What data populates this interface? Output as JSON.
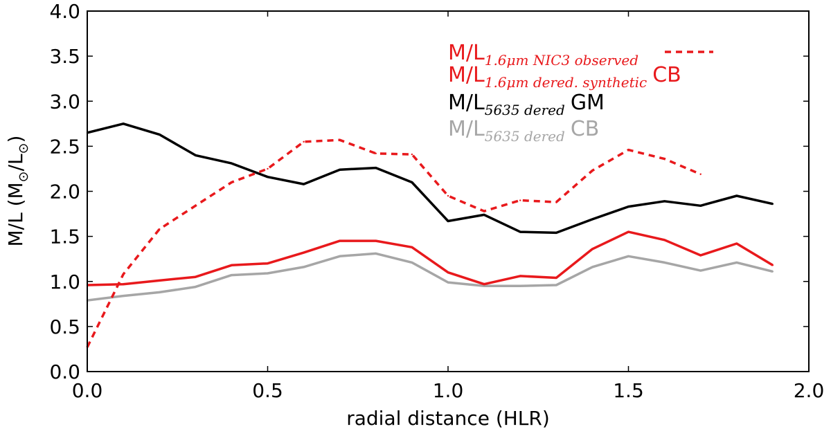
{
  "chart_data": {
    "type": "line",
    "title": "",
    "xlabel": "radial distance (HLR)",
    "ylabel_parts": {
      "prefix": "M/L (M",
      "sun1": "⊙",
      "mid": "/L",
      "sun2": "⊙",
      "suffix": ")"
    },
    "xlim": [
      0.0,
      2.0
    ],
    "ylim": [
      0.0,
      4.0
    ],
    "xticks": [
      0.0,
      0.5,
      1.0,
      1.5,
      2.0
    ],
    "xtick_labels": [
      "0.0",
      "0.5",
      "1.0",
      "1.5",
      "2.0"
    ],
    "yticks": [
      0.0,
      0.5,
      1.0,
      1.5,
      2.0,
      2.5,
      3.0,
      3.5,
      4.0
    ],
    "ytick_labels": [
      "0.0",
      "0.5",
      "1.0",
      "1.5",
      "2.0",
      "2.5",
      "3.0",
      "3.5",
      "4.0"
    ],
    "grid": false,
    "legend_position": "top-right",
    "series": [
      {
        "name": "M/L 1.6µm NIC3 observed",
        "legend_main": "M/L",
        "legend_sub": "1.6μm NIC3 observed",
        "legend_suffix": "",
        "color": "#e8191c",
        "style": "dashed",
        "x": [
          0.0,
          0.1,
          0.2,
          0.3,
          0.4,
          0.5,
          0.6,
          0.7,
          0.8,
          0.9,
          1.0,
          1.1,
          1.2,
          1.3,
          1.4,
          1.5,
          1.6,
          1.7
        ],
        "y": [
          0.27,
          1.08,
          1.58,
          1.84,
          2.1,
          2.25,
          2.55,
          2.57,
          2.42,
          2.41,
          1.95,
          1.78,
          1.9,
          1.88,
          2.23,
          2.46,
          2.36,
          2.19
        ]
      },
      {
        "name": "M/L 1.6µm dered. synthetic CB",
        "legend_main": "M/L",
        "legend_sub": "1.6μm dered. synthetic",
        "legend_suffix": "CB",
        "color": "#e8191c",
        "style": "solid",
        "x": [
          0.0,
          0.1,
          0.2,
          0.3,
          0.4,
          0.5,
          0.6,
          0.7,
          0.8,
          0.9,
          1.0,
          1.1,
          1.2,
          1.3,
          1.4,
          1.5,
          1.6,
          1.7,
          1.8,
          1.9
        ],
        "y": [
          0.96,
          0.97,
          1.01,
          1.05,
          1.18,
          1.2,
          1.32,
          1.45,
          1.45,
          1.38,
          1.1,
          0.97,
          1.06,
          1.04,
          1.36,
          1.55,
          1.46,
          1.29,
          1.42,
          1.18
        ]
      },
      {
        "name": "M/L 5635 dered GM",
        "legend_main": "M/L",
        "legend_sub": "5635 dered",
        "legend_suffix": "GM",
        "color": "#000000",
        "style": "solid",
        "x": [
          0.0,
          0.1,
          0.2,
          0.3,
          0.4,
          0.5,
          0.6,
          0.7,
          0.8,
          0.9,
          1.0,
          1.1,
          1.2,
          1.3,
          1.4,
          1.5,
          1.6,
          1.7,
          1.8,
          1.9
        ],
        "y": [
          2.65,
          2.75,
          2.63,
          2.4,
          2.31,
          2.16,
          2.08,
          2.24,
          2.26,
          2.1,
          1.67,
          1.74,
          1.55,
          1.54,
          1.69,
          1.83,
          1.89,
          1.84,
          1.95,
          1.86
        ]
      },
      {
        "name": "M/L 5635 dered CB",
        "legend_main": "M/L",
        "legend_sub": "5635 dered",
        "legend_suffix": "CB",
        "color": "#a6a6a6",
        "style": "solid",
        "x": [
          0.0,
          0.1,
          0.2,
          0.3,
          0.4,
          0.5,
          0.6,
          0.7,
          0.8,
          0.9,
          1.0,
          1.1,
          1.2,
          1.3,
          1.4,
          1.5,
          1.6,
          1.7,
          1.8,
          1.9
        ],
        "y": [
          0.79,
          0.84,
          0.88,
          0.94,
          1.07,
          1.09,
          1.16,
          1.28,
          1.31,
          1.21,
          0.99,
          0.95,
          0.95,
          0.96,
          1.16,
          1.28,
          1.21,
          1.12,
          1.21,
          1.11
        ]
      }
    ]
  }
}
